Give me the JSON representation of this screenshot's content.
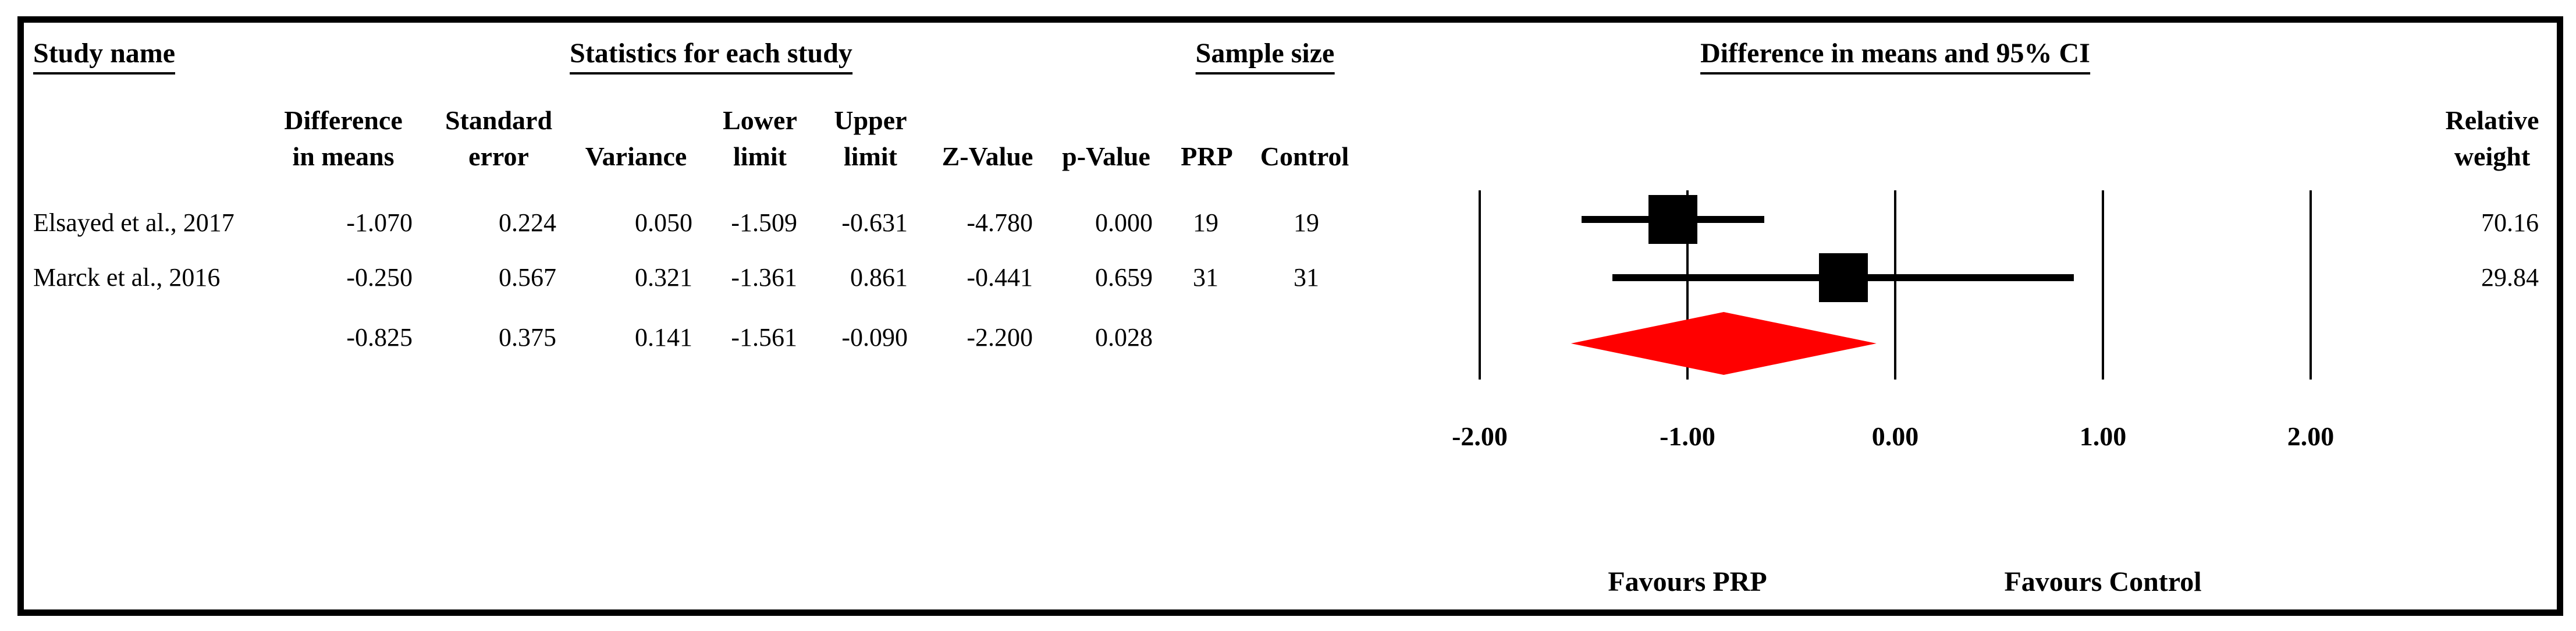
{
  "headers": {
    "study_name": "Study name",
    "statistics": "Statistics for each study",
    "sample_size": "Sample size",
    "ci_header": "Difference in means and 95% CI"
  },
  "columns": {
    "diff": [
      "Difference",
      "in means"
    ],
    "se": [
      "Standard",
      "error"
    ],
    "variance": [
      "",
      "Variance"
    ],
    "lower": [
      "Lower",
      "limit"
    ],
    "upper": [
      "Upper",
      "limit"
    ],
    "z": [
      "",
      "Z-Value"
    ],
    "p": [
      "",
      "p-Value"
    ],
    "prp": [
      "",
      "PRP"
    ],
    "control": [
      "",
      "Control"
    ],
    "weight": [
      "Relative",
      "weight"
    ]
  },
  "rows": [
    {
      "study": "Elsayed et al., 2017",
      "diff": "-1.070",
      "se": "0.224",
      "variance": "0.050",
      "lower": "-1.509",
      "upper": "-0.631",
      "z": "-4.780",
      "p": "0.000",
      "prp": "19",
      "control": "19",
      "weight": "70.16"
    },
    {
      "study": "Marck et al., 2016",
      "diff": "-0.250",
      "se": "0.567",
      "variance": "0.321",
      "lower": "-1.361",
      "upper": "0.861",
      "z": "-0.441",
      "p": "0.659",
      "prp": "31",
      "control": "31",
      "weight": "29.84"
    },
    {
      "study": "",
      "diff": "-0.825",
      "se": "0.375",
      "variance": "0.141",
      "lower": "-1.561",
      "upper": "-0.090",
      "z": "-2.200",
      "p": "0.028",
      "prp": "",
      "control": "",
      "weight": ""
    }
  ],
  "chart_data": {
    "type": "forest",
    "title": "Difference in means and 95% CI",
    "xlabel": "",
    "xlim": [
      -2.0,
      2.0
    ],
    "ticks": [
      -2.0,
      -1.0,
      0.0,
      1.0,
      2.0
    ],
    "tick_labels": [
      "-2.00",
      "-1.00",
      "0.00",
      "1.00",
      "2.00"
    ],
    "grid": true,
    "studies": [
      {
        "name": "Elsayed et al., 2017",
        "mean": -1.07,
        "lower": -1.509,
        "upper": -0.631,
        "relative_weight": 70.16,
        "marker": "square",
        "color": "#000000"
      },
      {
        "name": "Marck et al., 2016",
        "mean": -0.25,
        "lower": -1.361,
        "upper": 0.861,
        "relative_weight": 29.84,
        "marker": "square",
        "color": "#000000"
      }
    ],
    "summary": {
      "mean": -0.825,
      "lower": -1.561,
      "upper": -0.09,
      "marker": "diamond",
      "color": "#ff0000"
    },
    "footer_left": "Favours PRP",
    "footer_right": "Favours Control",
    "marker_color": "#000000",
    "summary_color": "#ff0000"
  }
}
